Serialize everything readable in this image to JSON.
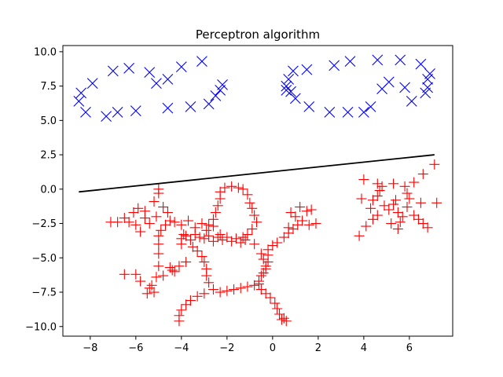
{
  "chart_data": {
    "type": "scatter",
    "title": "Perceptron algorithm",
    "xlabel": "",
    "ylabel": "",
    "xlim": [
      -9.2,
      7.9
    ],
    "ylim": [
      -10.7,
      10.45
    ],
    "xticks": [
      -8,
      -6,
      -4,
      -2,
      0,
      2,
      4,
      6
    ],
    "yticks": [
      -10.0,
      -7.5,
      -5.0,
      -2.5,
      0.0,
      2.5,
      5.0,
      7.5,
      10.0
    ],
    "ytick_labels": [
      "−10.0",
      "−7.5",
      "−5.0",
      "−2.5",
      "0.0",
      "2.5",
      "5.0",
      "7.5",
      "10.0"
    ],
    "xtick_labels": [
      "−8",
      "−6",
      "−4",
      "−2",
      "0",
      "2",
      "4",
      "6"
    ],
    "grid": false,
    "colors": {
      "class_x": "#0000ff",
      "class_plus": "#ff0000",
      "boundary": "#000000"
    },
    "series": [
      {
        "marker": "x",
        "color": "#0000ff",
        "points": [
          [
            -8.5,
            6.4
          ],
          [
            -8.4,
            7.0
          ],
          [
            -8.2,
            5.6
          ],
          [
            -7.9,
            7.7
          ],
          [
            -7.3,
            5.3
          ],
          [
            -7.0,
            8.6
          ],
          [
            -6.8,
            5.6
          ],
          [
            -6.3,
            8.8
          ],
          [
            -6.0,
            5.7
          ],
          [
            -5.4,
            8.5
          ],
          [
            -5.1,
            7.7
          ],
          [
            -4.6,
            8.0
          ],
          [
            -4.6,
            5.9
          ],
          [
            -4.0,
            8.9
          ],
          [
            -3.6,
            6.0
          ],
          [
            -3.1,
            9.3
          ],
          [
            -2.8,
            6.2
          ],
          [
            -2.5,
            6.8
          ],
          [
            -2.3,
            7.2
          ],
          [
            -2.2,
            7.6
          ],
          [
            0.6,
            7.2
          ],
          [
            0.6,
            7.5
          ],
          [
            0.7,
            8.0
          ],
          [
            0.8,
            7.1
          ],
          [
            0.9,
            8.6
          ],
          [
            1.0,
            6.6
          ],
          [
            1.5,
            8.7
          ],
          [
            1.6,
            6.0
          ],
          [
            2.5,
            5.6
          ],
          [
            2.7,
            9.0
          ],
          [
            3.3,
            5.6
          ],
          [
            3.4,
            9.3
          ],
          [
            4.0,
            5.6
          ],
          [
            4.3,
            6.0
          ],
          [
            4.6,
            9.4
          ],
          [
            4.8,
            7.3
          ],
          [
            5.1,
            7.8
          ],
          [
            5.6,
            9.4
          ],
          [
            5.8,
            7.4
          ],
          [
            6.1,
            6.4
          ],
          [
            6.5,
            9.1
          ],
          [
            6.7,
            7.0
          ],
          [
            6.8,
            7.4
          ],
          [
            6.8,
            8.0
          ],
          [
            6.9,
            8.4
          ]
        ]
      },
      {
        "marker": "+",
        "color": "#ff0000",
        "points": [
          [
            -7.1,
            -2.4
          ],
          [
            -6.8,
            -2.4
          ],
          [
            -6.5,
            -2.1
          ],
          [
            -6.3,
            -2.4
          ],
          [
            -6.1,
            -1.7
          ],
          [
            -6.0,
            -2.6
          ],
          [
            -5.9,
            -1.4
          ],
          [
            -5.8,
            -3.1
          ],
          [
            -5.6,
            -2.1
          ],
          [
            -5.6,
            -1.6
          ],
          [
            -5.4,
            -2.5
          ],
          [
            -5.2,
            -0.9
          ],
          [
            -5.1,
            -2.0
          ],
          [
            -5.0,
            -0.3
          ],
          [
            -5.0,
            0.0
          ],
          [
            -4.9,
            -3.0
          ],
          [
            -4.8,
            -1.3
          ],
          [
            -4.7,
            -2.6
          ],
          [
            -4.6,
            -1.7
          ],
          [
            -4.5,
            -2.3
          ],
          [
            -5.0,
            -3.4
          ],
          [
            -5.0,
            -4.0
          ],
          [
            -5.0,
            -4.7
          ],
          [
            -5.0,
            -5.6
          ],
          [
            -5.1,
            -6.4
          ],
          [
            -5.3,
            -7.0
          ],
          [
            -5.5,
            -7.6
          ],
          [
            -4.8,
            -6.3
          ],
          [
            -4.4,
            -5.9
          ],
          [
            -4.1,
            -5.6
          ],
          [
            -3.8,
            -5.3
          ],
          [
            -6.5,
            -6.2
          ],
          [
            -6.0,
            -6.2
          ],
          [
            -5.8,
            -6.7
          ],
          [
            -5.4,
            -7.2
          ],
          [
            -5.2,
            -7.5
          ],
          [
            -4.3,
            -2.4
          ],
          [
            -4.0,
            -2.6
          ],
          [
            -3.7,
            -2.3
          ],
          [
            -3.4,
            -2.8
          ],
          [
            -3.1,
            -2.5
          ],
          [
            -2.8,
            -2.6
          ],
          [
            -2.6,
            -2.2
          ],
          [
            -2.5,
            -1.7
          ],
          [
            -2.4,
            -1.2
          ],
          [
            -2.3,
            -0.7
          ],
          [
            -2.3,
            -0.2
          ],
          [
            -2.1,
            0.1
          ],
          [
            -1.8,
            0.2
          ],
          [
            -1.5,
            0.1
          ],
          [
            -1.3,
            0.0
          ],
          [
            -1.1,
            -0.4
          ],
          [
            -1.0,
            -1.0
          ],
          [
            -0.9,
            -1.4
          ],
          [
            -0.8,
            -1.9
          ],
          [
            -0.7,
            -2.4
          ],
          [
            -0.9,
            -2.9
          ],
          [
            -1.1,
            -3.3
          ],
          [
            -1.3,
            -3.5
          ],
          [
            -2.6,
            -2.7
          ],
          [
            -2.9,
            -3.0
          ],
          [
            -2.3,
            -3.3
          ],
          [
            -3.9,
            -3.3
          ],
          [
            -4.0,
            -3.6
          ],
          [
            -4.0,
            -4.0
          ],
          [
            -3.8,
            -3.4
          ],
          [
            -3.6,
            -3.7
          ],
          [
            -3.4,
            -3.3
          ],
          [
            -3.2,
            -3.5
          ],
          [
            -3.0,
            -3.6
          ],
          [
            -2.8,
            -3.4
          ],
          [
            -2.6,
            -3.8
          ],
          [
            -2.4,
            -3.5
          ],
          [
            -2.2,
            -3.7
          ],
          [
            -2.0,
            -3.5
          ],
          [
            -1.8,
            -3.8
          ],
          [
            -1.6,
            -3.6
          ],
          [
            -1.4,
            -3.9
          ],
          [
            -1.2,
            -3.7
          ],
          [
            -3.5,
            -4.2
          ],
          [
            -3.3,
            -4.5
          ],
          [
            -3.1,
            -4.9
          ],
          [
            -3.0,
            -5.3
          ],
          [
            -2.9,
            -5.8
          ],
          [
            -2.9,
            -6.3
          ],
          [
            -2.8,
            -6.8
          ],
          [
            -2.6,
            -7.3
          ],
          [
            -2.3,
            -7.5
          ],
          [
            -2.0,
            -7.4
          ],
          [
            -1.7,
            -7.3
          ],
          [
            -1.4,
            -7.2
          ],
          [
            -1.1,
            -7.1
          ],
          [
            -0.8,
            -7.0
          ],
          [
            -0.6,
            -6.7
          ],
          [
            -0.5,
            -6.3
          ],
          [
            -0.3,
            -5.8
          ],
          [
            -0.2,
            -5.3
          ],
          [
            -0.2,
            -4.8
          ],
          [
            -0.2,
            -4.4
          ],
          [
            0.0,
            -4.1
          ],
          [
            0.2,
            -3.9
          ],
          [
            0.5,
            -3.5
          ],
          [
            0.7,
            -3.2
          ],
          [
            0.9,
            -2.9
          ],
          [
            1.1,
            -2.6
          ],
          [
            1.3,
            -2.3
          ],
          [
            1.6,
            -2.6
          ],
          [
            1.9,
            -2.5
          ],
          [
            1.0,
            -2.0
          ],
          [
            0.8,
            -1.7
          ],
          [
            1.2,
            -1.3
          ],
          [
            1.5,
            -1.6
          ],
          [
            1.7,
            -1.5
          ],
          [
            0.7,
            -2.8
          ],
          [
            -0.8,
            -4.0
          ],
          [
            -0.5,
            -4.7
          ],
          [
            -0.4,
            -5.1
          ],
          [
            -0.3,
            -5.6
          ],
          [
            -0.4,
            -6.1
          ],
          [
            -0.6,
            -6.9
          ],
          [
            -0.5,
            -7.3
          ],
          [
            -0.3,
            -7.6
          ],
          [
            -0.1,
            -7.9
          ],
          [
            0.1,
            -8.3
          ],
          [
            0.2,
            -8.7
          ],
          [
            0.3,
            -9.1
          ],
          [
            0.5,
            -9.4
          ],
          [
            0.6,
            -9.6
          ],
          [
            0.4,
            -9.5
          ],
          [
            -3.0,
            -7.6
          ],
          [
            -3.3,
            -7.8
          ],
          [
            -3.6,
            -8.1
          ],
          [
            -3.8,
            -8.4
          ],
          [
            -4.0,
            -8.8
          ],
          [
            -4.1,
            -9.2
          ],
          [
            -4.1,
            -9.6
          ],
          [
            -4.3,
            -6.0
          ],
          [
            -4.5,
            -5.7
          ],
          [
            3.8,
            -3.4
          ],
          [
            4.1,
            -2.7
          ],
          [
            4.4,
            -2.2
          ],
          [
            4.6,
            -1.9
          ],
          [
            4.3,
            -1.4
          ],
          [
            4.4,
            -0.8
          ],
          [
            4.6,
            -0.5
          ],
          [
            4.9,
            -1.2
          ],
          [
            5.1,
            -1.5
          ],
          [
            5.3,
            -1.1
          ],
          [
            5.4,
            -0.8
          ],
          [
            5.5,
            -1.7
          ],
          [
            5.7,
            -2.0
          ],
          [
            5.6,
            -2.4
          ],
          [
            5.5,
            -2.9
          ],
          [
            5.9,
            -1.3
          ],
          [
            6.0,
            -0.7
          ],
          [
            6.2,
            -1.9
          ],
          [
            6.4,
            -2.2
          ],
          [
            6.6,
            -2.5
          ],
          [
            6.8,
            -2.8
          ],
          [
            7.2,
            -1.0
          ],
          [
            7.1,
            1.8
          ],
          [
            6.6,
            1.1
          ],
          [
            6.2,
            0.5
          ],
          [
            5.8,
            0.2
          ],
          [
            5.3,
            0.4
          ],
          [
            4.8,
            0.2
          ],
          [
            4.6,
            0.4
          ],
          [
            4.0,
            0.7
          ],
          [
            3.9,
            -0.7
          ],
          [
            4.7,
            -0.1
          ],
          [
            6.5,
            -1.0
          ],
          [
            5.9,
            -0.3
          ],
          [
            5.2,
            -2.5
          ]
        ]
      }
    ],
    "boundary_line": {
      "x": [
        -8.5,
        7.1
      ],
      "y": [
        -0.2,
        2.5
      ]
    }
  }
}
